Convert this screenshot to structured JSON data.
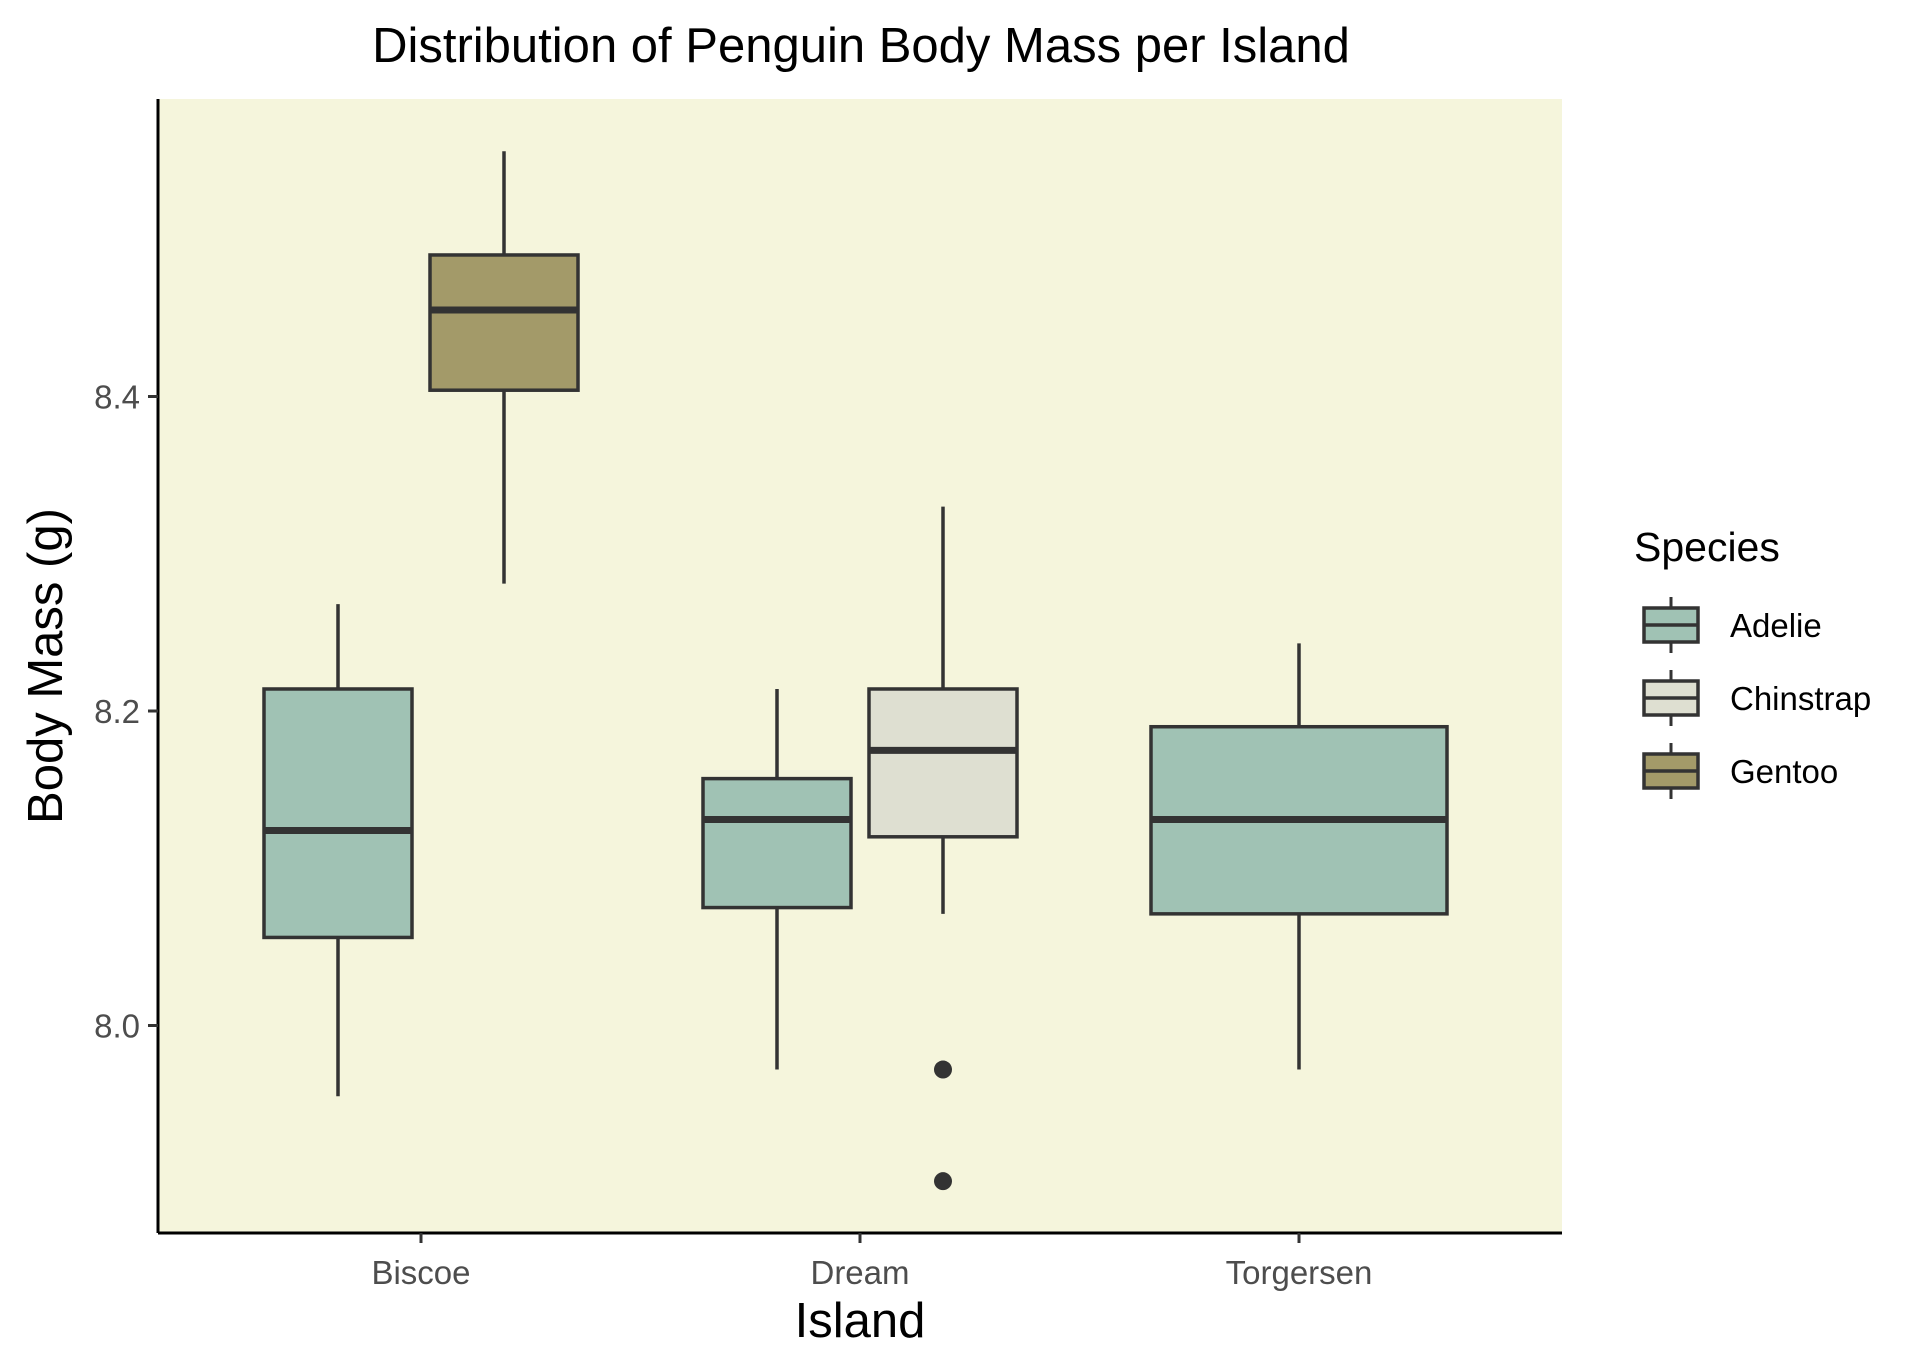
{
  "chart_data": {
    "type": "box",
    "title": "Distribution of Penguin Body Mass per Island",
    "xlabel": "Island",
    "ylabel": "Body Mass (g)",
    "categories": [
      "Biscoe",
      "Dream",
      "Torgersen"
    ],
    "ylim": [
      7.87,
      8.63
    ],
    "yticks": [
      8.0,
      8.2,
      8.4
    ],
    "ytick_labels": [
      "8.0",
      "8.2",
      "8.4"
    ],
    "grid": false,
    "legend": {
      "title": "Species",
      "position": "right"
    },
    "series": [
      {
        "name": "Adelie",
        "color": "#a0c2b4",
        "boxes": [
          {
            "category": "Biscoe",
            "min": 7.955,
            "q1": 8.056,
            "median": 8.124,
            "q3": 8.214,
            "max": 8.268,
            "outliers": []
          },
          {
            "category": "Dream",
            "min": 7.972,
            "q1": 8.075,
            "median": 8.131,
            "q3": 8.157,
            "max": 8.214,
            "outliers": []
          },
          {
            "category": "Torgersen",
            "min": 7.972,
            "q1": 8.071,
            "median": 8.131,
            "q3": 8.19,
            "max": 8.243,
            "outliers": []
          }
        ]
      },
      {
        "name": "Chinstrap",
        "color": "#dedfd1",
        "boxes": [
          {
            "category": "Dream",
            "min": 8.071,
            "q1": 8.12,
            "median": 8.175,
            "q3": 8.214,
            "max": 8.33,
            "outliers": [
              7.972,
              7.901
            ]
          }
        ]
      },
      {
        "name": "Gentoo",
        "color": "#a39a69",
        "boxes": [
          {
            "category": "Biscoe",
            "min": 8.281,
            "q1": 8.404,
            "median": 8.455,
            "q3": 8.49,
            "max": 8.556,
            "outliers": []
          }
        ]
      }
    ],
    "panel_background": "#f5f5dc",
    "box_stroke": "#333333"
  }
}
